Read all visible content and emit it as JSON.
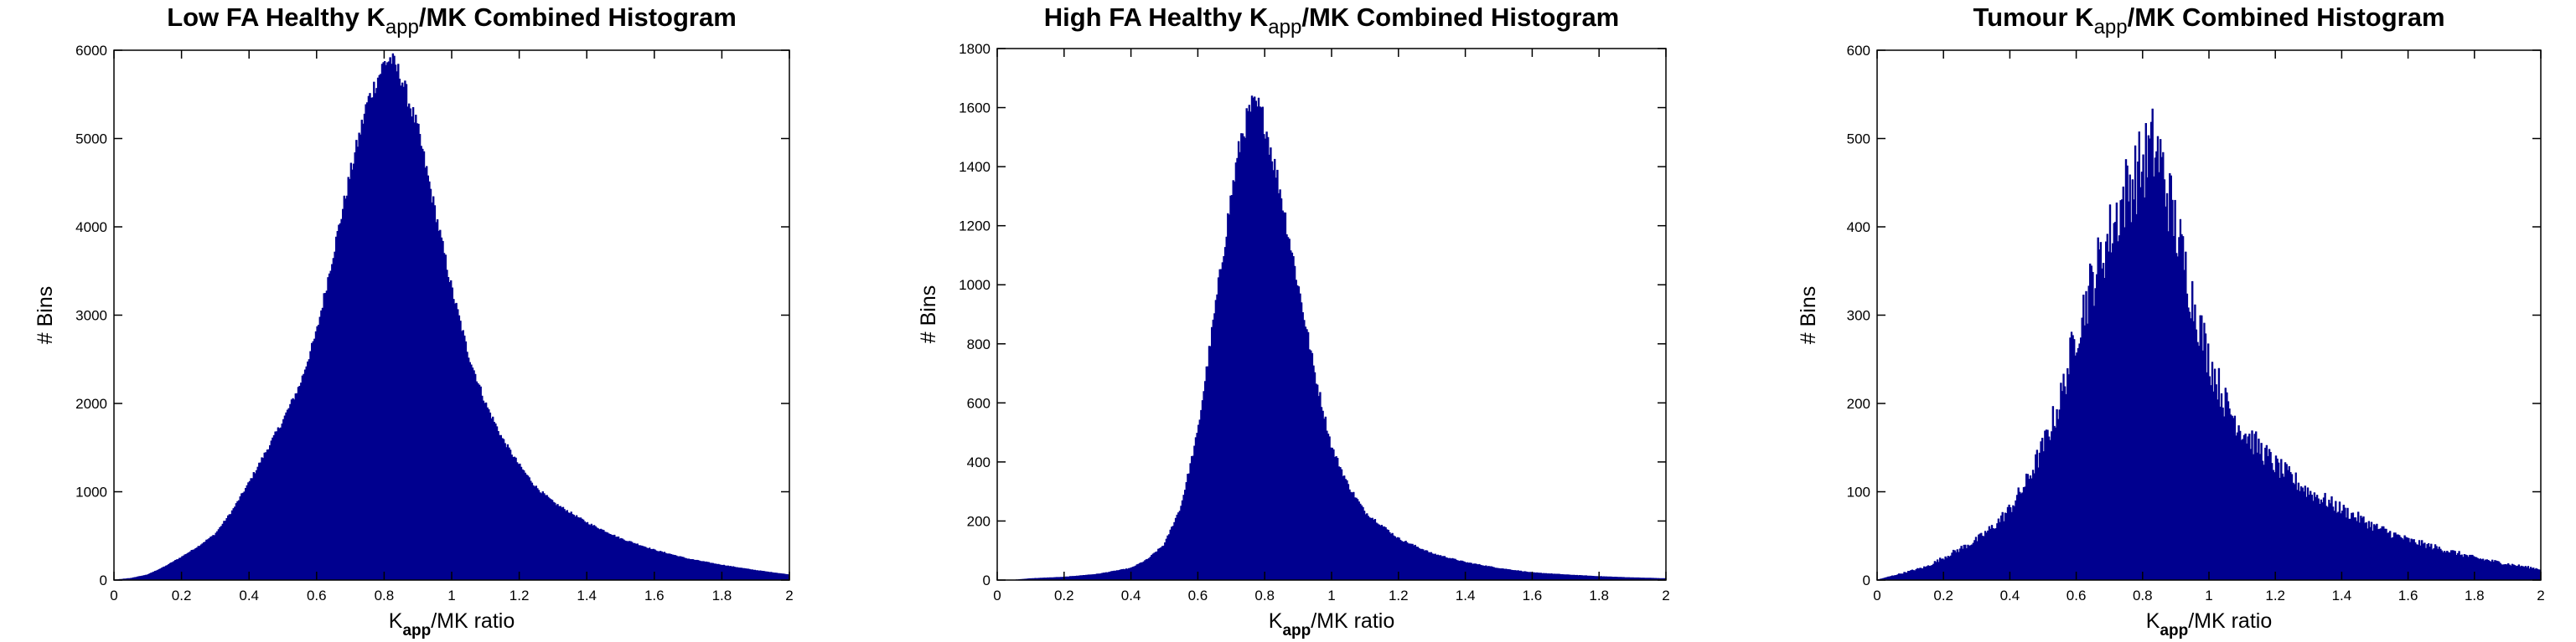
{
  "chart_data": [
    {
      "type": "bar",
      "title": {
        "main": "Low FA Healthy K",
        "sub": "app",
        "rest": "/MK Combined Histogram"
      },
      "xlabel": {
        "main": "K",
        "sub": "app",
        "rest": "/MK ratio"
      },
      "ylabel": "# Bins",
      "xlim": [
        0,
        2
      ],
      "ylim": [
        0,
        6000
      ],
      "xticks": [
        0,
        0.2,
        0.4,
        0.6,
        0.8,
        1,
        1.2,
        1.4,
        1.6,
        1.8,
        2
      ],
      "yticks": [
        0,
        1000,
        2000,
        3000,
        4000,
        5000,
        6000
      ],
      "grid": false,
      "color": "#00008f",
      "x": [
        0.0,
        0.05,
        0.1,
        0.15,
        0.2,
        0.25,
        0.3,
        0.35,
        0.4,
        0.45,
        0.5,
        0.55,
        0.6,
        0.65,
        0.7,
        0.75,
        0.8,
        0.82,
        0.85,
        0.9,
        0.95,
        1.0,
        1.05,
        1.1,
        1.15,
        1.2,
        1.25,
        1.3,
        1.4,
        1.5,
        1.6,
        1.7,
        1.8,
        1.9,
        2.0
      ],
      "values": [
        0,
        20,
        60,
        150,
        260,
        380,
        520,
        780,
        1100,
        1450,
        1800,
        2200,
        2800,
        3700,
        4600,
        5400,
        5850,
        5900,
        5700,
        5100,
        4200,
        3300,
        2550,
        2000,
        1600,
        1300,
        1050,
        880,
        650,
        470,
        340,
        240,
        170,
        110,
        60
      ]
    },
    {
      "type": "bar",
      "title": {
        "main": "High FA Healthy K",
        "sub": "app",
        "rest": "/MK Combined Histogram"
      },
      "xlabel": {
        "main": "K",
        "sub": "app",
        "rest": "/MK ratio"
      },
      "ylabel": "# Bins",
      "xlim": [
        0,
        2
      ],
      "ylim": [
        0,
        1800
      ],
      "xticks": [
        0,
        0.2,
        0.4,
        0.6,
        0.8,
        1,
        1.2,
        1.4,
        1.6,
        1.8,
        2
      ],
      "yticks": [
        0,
        200,
        400,
        600,
        800,
        1000,
        1200,
        1400,
        1600,
        1800
      ],
      "grid": false,
      "color": "#00008f",
      "x": [
        0.0,
        0.05,
        0.1,
        0.2,
        0.3,
        0.4,
        0.45,
        0.5,
        0.55,
        0.6,
        0.65,
        0.7,
        0.73,
        0.76,
        0.78,
        0.8,
        0.85,
        0.9,
        0.95,
        1.0,
        1.05,
        1.1,
        1.2,
        1.3,
        1.4,
        1.5,
        1.6,
        1.7,
        1.8,
        1.9,
        2.0
      ],
      "values": [
        0,
        0,
        5,
        10,
        20,
        40,
        70,
        120,
        250,
        500,
        900,
        1300,
        1500,
        1600,
        1600,
        1550,
        1300,
        1000,
        700,
        450,
        320,
        230,
        140,
        90,
        60,
        40,
        25,
        18,
        12,
        8,
        5
      ]
    },
    {
      "type": "bar",
      "title": {
        "main": "Tumour K",
        "sub": "app",
        "rest": "/MK Combined Histogram"
      },
      "xlabel": {
        "main": "K",
        "sub": "app",
        "rest": "/MK ratio"
      },
      "ylabel": "# Bins",
      "xlim": [
        0,
        2
      ],
      "ylim": [
        0,
        600
      ],
      "xticks": [
        0,
        0.2,
        0.4,
        0.6,
        0.8,
        1,
        1.2,
        1.4,
        1.6,
        1.8,
        2
      ],
      "yticks": [
        0,
        100,
        200,
        300,
        400,
        500,
        600
      ],
      "grid": false,
      "color": "#00008f",
      "x": [
        0.0,
        0.05,
        0.1,
        0.15,
        0.2,
        0.25,
        0.3,
        0.35,
        0.4,
        0.45,
        0.5,
        0.55,
        0.6,
        0.65,
        0.7,
        0.75,
        0.8,
        0.83,
        0.85,
        0.9,
        0.95,
        1.0,
        1.05,
        1.1,
        1.15,
        1.2,
        1.3,
        1.4,
        1.5,
        1.6,
        1.7,
        1.8,
        1.9,
        2.0
      ],
      "values": [
        0,
        5,
        10,
        15,
        25,
        35,
        45,
        60,
        80,
        110,
        150,
        200,
        280,
        340,
        390,
        440,
        470,
        490,
        480,
        400,
        320,
        250,
        200,
        170,
        150,
        130,
        100,
        80,
        60,
        45,
        35,
        25,
        18,
        12
      ]
    }
  ]
}
